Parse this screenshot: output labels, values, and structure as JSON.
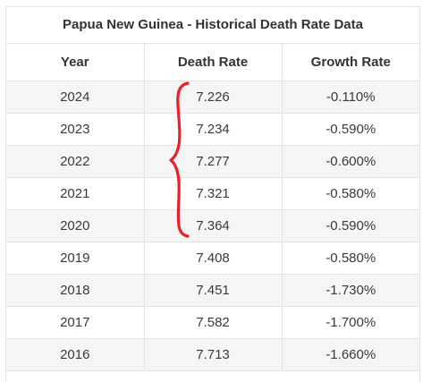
{
  "table": {
    "title": "Papua New Guinea - Historical Death Rate Data",
    "headers": [
      "Year",
      "Death Rate",
      "Growth Rate"
    ],
    "rows": [
      {
        "year": "2024",
        "death_rate": "7.226",
        "growth_rate": "-0.110%"
      },
      {
        "year": "2023",
        "death_rate": "7.234",
        "growth_rate": "-0.590%"
      },
      {
        "year": "2022",
        "death_rate": "7.277",
        "growth_rate": "-0.600%"
      },
      {
        "year": "2021",
        "death_rate": "7.321",
        "growth_rate": "-0.580%"
      },
      {
        "year": "2020",
        "death_rate": "7.364",
        "growth_rate": "-0.590%"
      },
      {
        "year": "2019",
        "death_rate": "7.408",
        "growth_rate": "-0.580%"
      },
      {
        "year": "2018",
        "death_rate": "7.451",
        "growth_rate": "-1.730%"
      },
      {
        "year": "2017",
        "death_rate": "7.582",
        "growth_rate": "-1.700%"
      },
      {
        "year": "2016",
        "death_rate": "7.713",
        "growth_rate": "-1.660%"
      }
    ]
  },
  "annotation": {
    "brace_color": "#e8212a"
  }
}
